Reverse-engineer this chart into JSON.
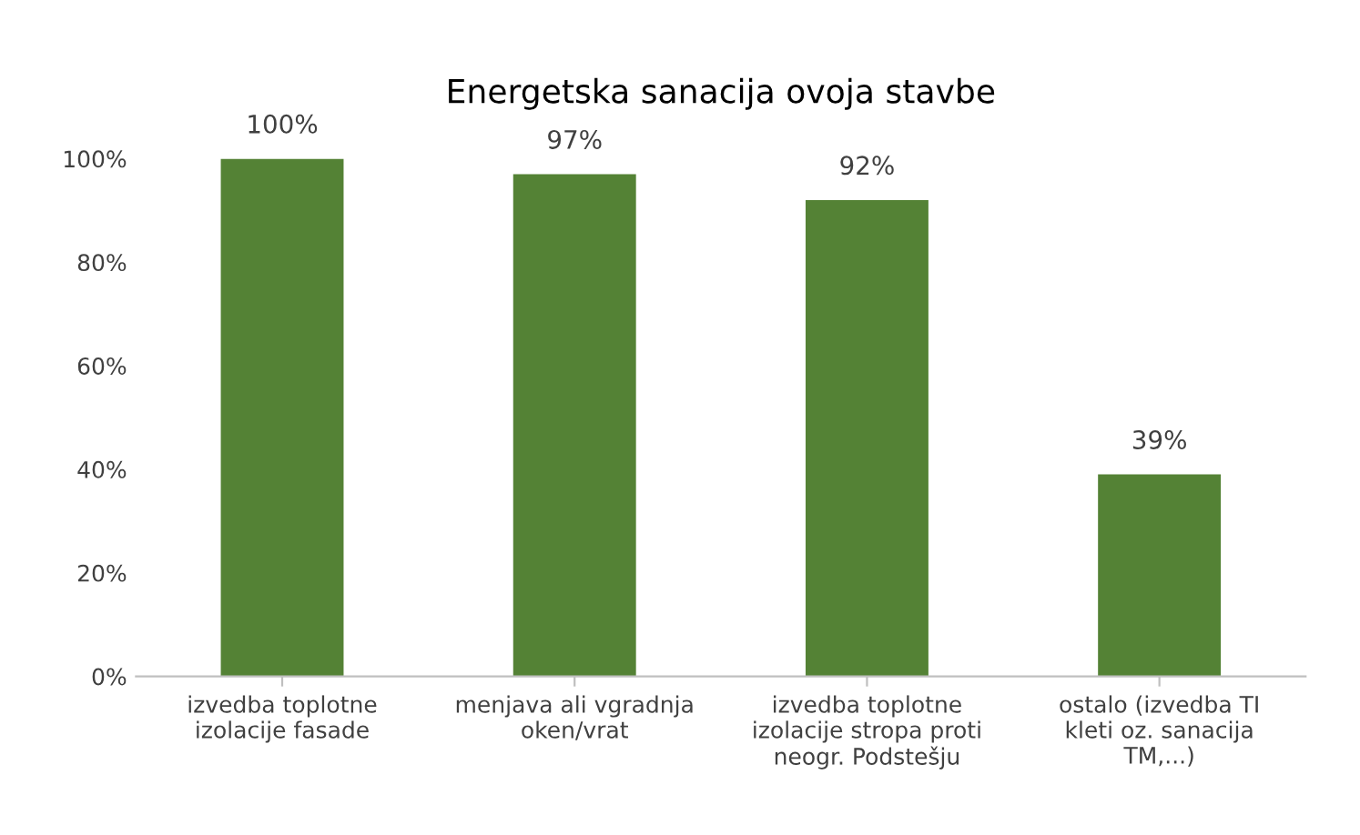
{
  "chart_data": {
    "type": "bar",
    "title": "Energetska sanacija ovoja stavbe",
    "categories": [
      "izvedba toplotne\nizolacije fasade",
      "menjava ali vgradnja\noken/vrat",
      "izvedba toplotne\nizolacije stropa proti\nneogr. Podstešju",
      "ostalo (izvedba TI\nkleti oz. sanacija\nTM,...)"
    ],
    "values": [
      100,
      97,
      92,
      39
    ],
    "value_labels": [
      "100%",
      "97%",
      "92%",
      "39%"
    ],
    "color": "#548235",
    "ylim": [
      0,
      100
    ],
    "yticks": [
      {
        "value": 0,
        "label": "0%"
      },
      {
        "value": 20,
        "label": "20%"
      },
      {
        "value": 40,
        "label": "40%"
      },
      {
        "value": 60,
        "label": "60%"
      },
      {
        "value": 80,
        "label": "80%"
      },
      {
        "value": 100,
        "label": "100%"
      }
    ],
    "grid": false,
    "legend": false
  }
}
